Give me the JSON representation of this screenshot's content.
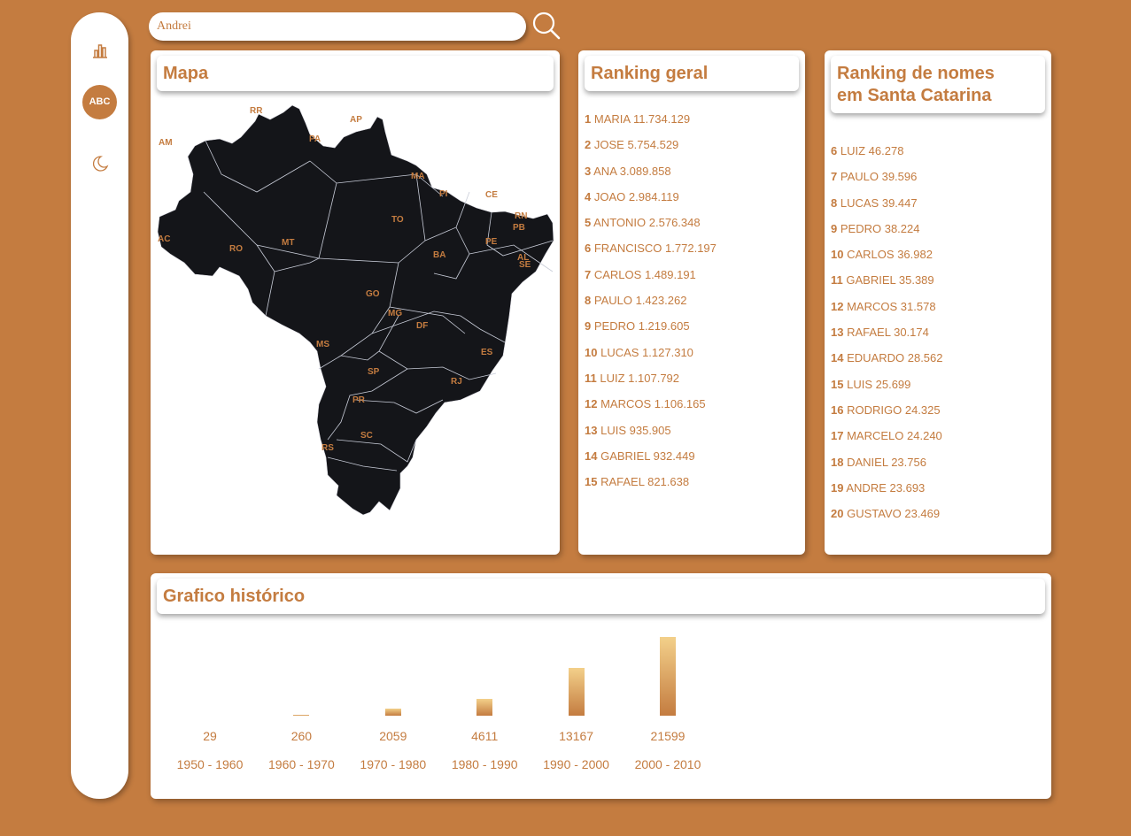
{
  "search": {
    "value": "Andrei"
  },
  "sidebar": {
    "abc_label": "ABC"
  },
  "mapa": {
    "title": "Mapa",
    "states": [
      "RR",
      "AP",
      "AM",
      "PA",
      "MA",
      "PI",
      "CE",
      "RN",
      "PB",
      "PE",
      "AL",
      "SE",
      "TO",
      "AC",
      "RO",
      "MT",
      "BA",
      "GO",
      "DF",
      "MG",
      "MS",
      "ES",
      "SP",
      "RJ",
      "PR",
      "SC",
      "RS"
    ]
  },
  "ranking_geral": {
    "title": "Ranking geral",
    "items": [
      {
        "rank": "1",
        "name": "MARIA",
        "count": "11.734.129"
      },
      {
        "rank": "2",
        "name": "JOSE",
        "count": "5.754.529"
      },
      {
        "rank": "3",
        "name": "ANA",
        "count": "3.089.858"
      },
      {
        "rank": "4",
        "name": "JOAO",
        "count": "2.984.119"
      },
      {
        "rank": "5",
        "name": "ANTONIO",
        "count": "2.576.348"
      },
      {
        "rank": "6",
        "name": "FRANCISCO",
        "count": "1.772.197"
      },
      {
        "rank": "7",
        "name": "CARLOS",
        "count": "1.489.191"
      },
      {
        "rank": "8",
        "name": "PAULO",
        "count": "1.423.262"
      },
      {
        "rank": "9",
        "name": "PEDRO",
        "count": "1.219.605"
      },
      {
        "rank": "10",
        "name": "LUCAS",
        "count": "1.127.310"
      },
      {
        "rank": "11",
        "name": "LUIZ",
        "count": "1.107.792"
      },
      {
        "rank": "12",
        "name": "MARCOS",
        "count": "1.106.165"
      },
      {
        "rank": "13",
        "name": "LUIS",
        "count": "935.905"
      },
      {
        "rank": "14",
        "name": "GABRIEL",
        "count": "932.449"
      },
      {
        "rank": "15",
        "name": "RAFAEL",
        "count": "821.638"
      }
    ]
  },
  "ranking_sc": {
    "title_line1": "Ranking de nomes",
    "title_line2": "em Santa Catarina",
    "items": [
      {
        "rank": "6",
        "name": "LUIZ",
        "count": "46.278"
      },
      {
        "rank": "7",
        "name": "PAULO",
        "count": "39.596"
      },
      {
        "rank": "8",
        "name": "LUCAS",
        "count": "39.447"
      },
      {
        "rank": "9",
        "name": "PEDRO",
        "count": "38.224"
      },
      {
        "rank": "10",
        "name": "CARLOS",
        "count": "36.982"
      },
      {
        "rank": "11",
        "name": "GABRIEL",
        "count": "35.389"
      },
      {
        "rank": "12",
        "name": "MARCOS",
        "count": "31.578"
      },
      {
        "rank": "13",
        "name": "RAFAEL",
        "count": "30.174"
      },
      {
        "rank": "14",
        "name": "EDUARDO",
        "count": "28.562"
      },
      {
        "rank": "15",
        "name": "LUIS",
        "count": "25.699"
      },
      {
        "rank": "16",
        "name": "RODRIGO",
        "count": "24.325"
      },
      {
        "rank": "17",
        "name": "MARCELO",
        "count": "24.240"
      },
      {
        "rank": "18",
        "name": "DANIEL",
        "count": "23.756"
      },
      {
        "rank": "19",
        "name": "ANDRE",
        "count": "23.693"
      },
      {
        "rank": "20",
        "name": "GUSTAVO",
        "count": "23.469"
      }
    ]
  },
  "grafico": {
    "title": "Grafico histórico"
  },
  "chart_data": {
    "type": "bar",
    "categories": [
      "1950 - 1960",
      "1960 - 1970",
      "1970 - 1980",
      "1980 - 1990",
      "1990 - 2000",
      "2000 - 2010"
    ],
    "values": [
      29,
      260,
      2059,
      4611,
      13167,
      21599
    ],
    "value_labels": [
      "29",
      "260",
      "2059",
      "4611",
      "13167",
      "21599"
    ],
    "bar_colors": [
      "#f3d08a",
      "#c47c40"
    ]
  },
  "colors": {
    "accent": "#c47c40",
    "map_fill": "#141519",
    "card": "#ffffff"
  }
}
